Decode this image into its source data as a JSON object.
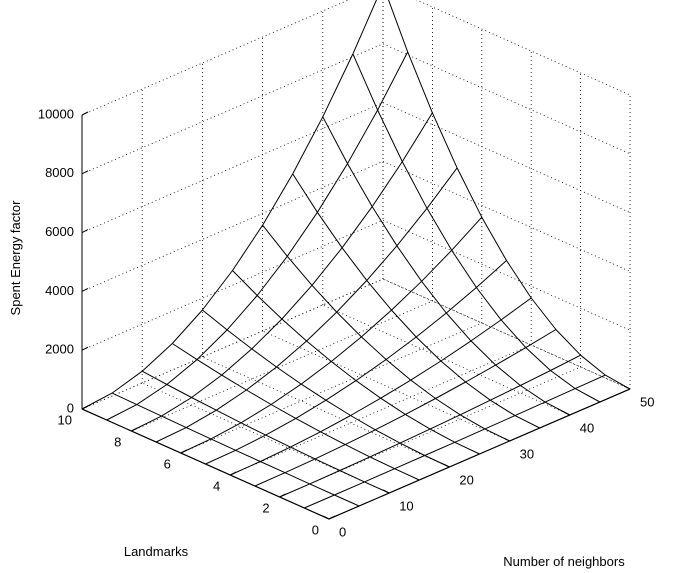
{
  "chart_data": {
    "type": "surface3d",
    "title": "",
    "xlabel": "Number of neighbors",
    "ylabel": "Landmarks",
    "zlabel": "Spent Energy factor",
    "x_range": [
      0,
      50
    ],
    "y_range": [
      0,
      10
    ],
    "z_range": [
      0,
      10000
    ],
    "x_ticks": [
      0,
      10,
      20,
      30,
      40,
      50
    ],
    "y_ticks": [
      0,
      2,
      4,
      6,
      8,
      10
    ],
    "z_ticks": [
      0,
      2000,
      4000,
      6000,
      8000,
      10000
    ],
    "x_tick_labels": [
      "0",
      "10",
      "20",
      "30",
      "40",
      "50"
    ],
    "y_tick_labels": [
      "0",
      "2",
      "4",
      "6",
      "8",
      "10"
    ],
    "z_tick_labels": [
      "0",
      "2000",
      "4000",
      "6000",
      "8000",
      "10000"
    ],
    "grid": true,
    "surface": {
      "x": [
        0,
        5,
        10,
        15,
        20,
        25,
        30,
        35,
        40,
        45,
        50
      ],
      "y": [
        0,
        1,
        2,
        3,
        4,
        5,
        6,
        7,
        8,
        9,
        10
      ],
      "z_formula": "x^2 * y^2 / 25",
      "z_corner_max": 10000,
      "face_color": "#ffffff",
      "edge_color": "#000000"
    }
  }
}
